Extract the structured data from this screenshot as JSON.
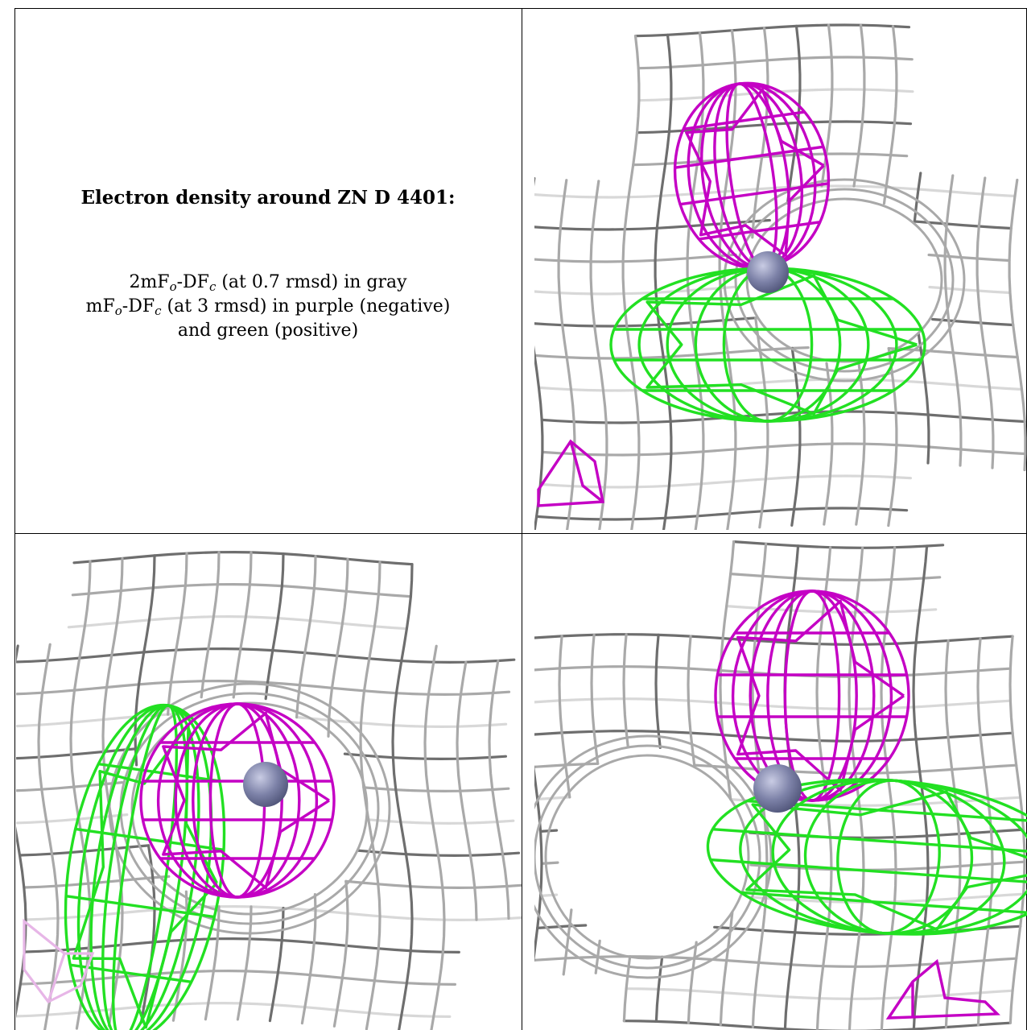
{
  "caption": {
    "title": "Electron density around ZN D 4401:",
    "line1": {
      "a": "2mF",
      "s1": "o",
      "b": "-DF",
      "s2": "c",
      "c": " (at 0.7 rmsd) in gray"
    },
    "line2": {
      "a": "mF",
      "s1": "o",
      "b": "-DF",
      "s2": "c",
      "c": " (at 3 rmsd) in purple (negative)"
    },
    "line3": "and green (positive)"
  },
  "colors": {
    "gray_mesh": "#a9a9a9",
    "dark_mesh": "#6e6e6e",
    "light_mesh": "#d8d8d8",
    "purple_mesh": "#c400c4",
    "green_mesh": "#22e022",
    "atom": "#7d82a8"
  },
  "views": [
    {
      "name": "view-top-right"
    },
    {
      "name": "view-bottom-left"
    },
    {
      "name": "view-bottom-right"
    }
  ]
}
